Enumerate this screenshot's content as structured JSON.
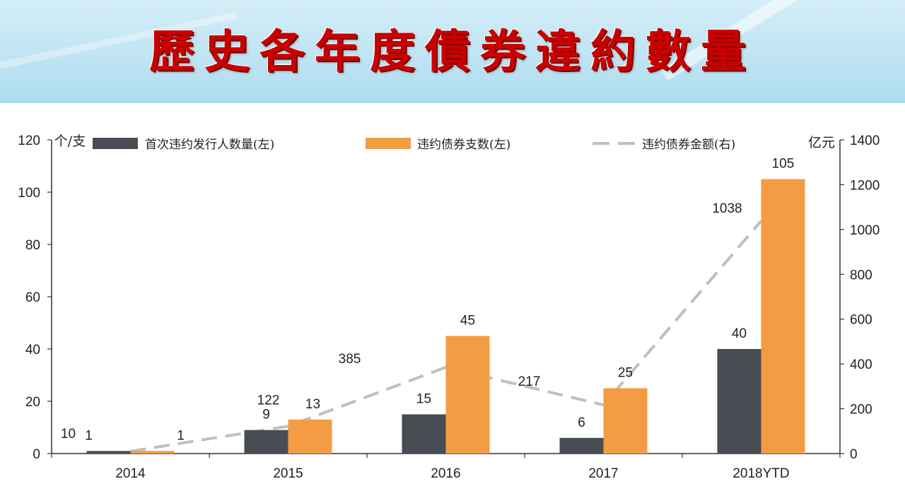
{
  "title": "歷史各年度債券違約數量",
  "colors": {
    "series1": "#484d54",
    "series2": "#f39c44",
    "series3": "#bfbfbf",
    "title": "#c80000"
  },
  "chart_data": {
    "type": "bar",
    "categories": [
      "2014",
      "2015",
      "2016",
      "2017",
      "2018YTD"
    ],
    "left_unit": "个/支",
    "right_unit": "亿元",
    "ylim_left": [
      0,
      120
    ],
    "ylim_right": [
      0,
      1400
    ],
    "yticks_left": [
      "0",
      "20",
      "40",
      "60",
      "80",
      "100",
      "120"
    ],
    "yticks_right": [
      "0",
      "200",
      "400",
      "600",
      "800",
      "1000",
      "1200",
      "1400"
    ],
    "grid": false,
    "legend_position": "top",
    "series": [
      {
        "name": "首次违约发行人数量(左)",
        "type": "bar",
        "axis": "left",
        "values": [
          1,
          9,
          15,
          6,
          40
        ],
        "labels": [
          "1",
          "9",
          "15",
          "6",
          "40"
        ]
      },
      {
        "name": "违约债券支数(左)",
        "type": "bar",
        "axis": "left",
        "values": [
          1,
          13,
          45,
          25,
          105
        ],
        "labels": [
          "1",
          "13",
          "45",
          "25",
          "105"
        ]
      },
      {
        "name": "违约债券金额(右)",
        "type": "line",
        "axis": "right",
        "style": "dashed",
        "values": [
          10,
          122,
          385,
          217,
          1038
        ],
        "labels": [
          "10",
          "122",
          "385",
          "217",
          "1038"
        ]
      }
    ]
  }
}
